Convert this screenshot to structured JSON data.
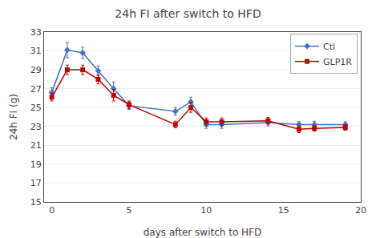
{
  "chart_data": {
    "type": "line",
    "title": "24h FI after switch to HFD",
    "xlabel": "days after switch to HFD",
    "ylabel": "24h FI (g)",
    "x": [
      0,
      1,
      2,
      3,
      4,
      5,
      8,
      9,
      10,
      11,
      14,
      16,
      17,
      19
    ],
    "series": [
      {
        "name": "Ctl",
        "color": "#4472C4",
        "marker": "diamond",
        "values": [
          26.6,
          31.1,
          30.8,
          28.9,
          27.0,
          25.2,
          24.6,
          25.6,
          23.2,
          23.2,
          23.4,
          23.2,
          23.2,
          23.2
        ],
        "error": [
          0.5,
          0.8,
          0.6,
          0.5,
          0.7,
          0.4,
          0.4,
          0.5,
          0.4,
          0.4,
          0.35,
          0.3,
          0.35,
          0.3
        ]
      },
      {
        "name": "GLP1R",
        "color": "#C00000",
        "marker": "square",
        "values": [
          26.1,
          29.0,
          29.0,
          28.0,
          26.3,
          25.3,
          23.2,
          25.0,
          23.5,
          23.5,
          23.6,
          22.7,
          22.8,
          22.9
        ],
        "error": [
          0.4,
          0.5,
          0.5,
          0.5,
          0.6,
          0.4,
          0.35,
          0.5,
          0.4,
          0.4,
          0.35,
          0.35,
          0.3,
          0.3
        ]
      }
    ],
    "xlim": [
      -0.5,
      20
    ],
    "xticks": [
      0,
      5,
      10,
      15,
      20
    ],
    "ylim": [
      15,
      33
    ],
    "yticks": [
      15,
      17,
      19,
      21,
      23,
      25,
      27,
      29,
      31,
      33
    ],
    "grid": "y",
    "legend": "upper right"
  }
}
